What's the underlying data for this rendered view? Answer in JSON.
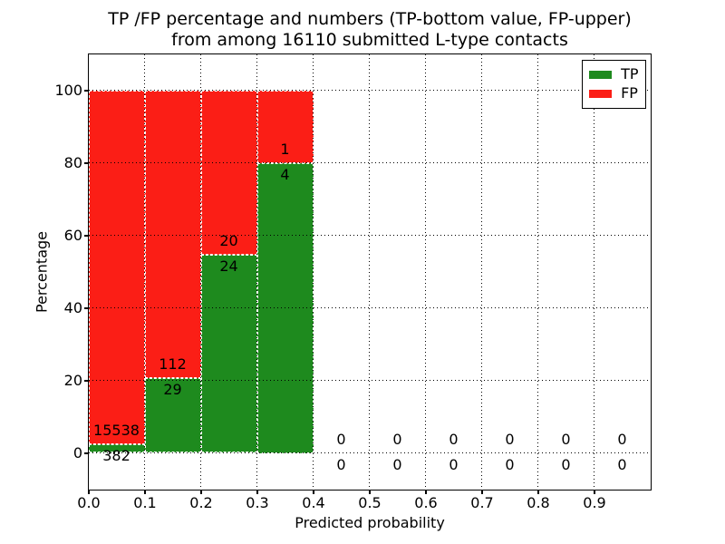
{
  "chart_data": {
    "type": "bar",
    "stacked": true,
    "title_line1": "TP /FP percentage and numbers (TP-bottom value, FP-upper)",
    "title_line2": "from among 16110 submitted L-type contacts",
    "total_submitted": 16110,
    "xlabel": "Predicted probability",
    "ylabel": "Percentage",
    "xlim": [
      0.0,
      1.0
    ],
    "ylim": [
      -10,
      110
    ],
    "grid": true,
    "x_tick_labels": [
      "0.0",
      "0.1",
      "0.2",
      "0.3",
      "0.4",
      "0.5",
      "0.6",
      "0.7",
      "0.8",
      "0.9"
    ],
    "y_tick_values": [
      0,
      20,
      40,
      60,
      80,
      100
    ],
    "bin_width": 0.1,
    "bins": [
      {
        "x0": 0.0,
        "x1": 0.1,
        "tp": 382,
        "fp": 15538
      },
      {
        "x0": 0.1,
        "x1": 0.2,
        "tp": 29,
        "fp": 112
      },
      {
        "x0": 0.2,
        "x1": 0.3,
        "tp": 24,
        "fp": 20
      },
      {
        "x0": 0.3,
        "x1": 0.4,
        "tp": 4,
        "fp": 1
      },
      {
        "x0": 0.4,
        "x1": 0.5,
        "tp": 0,
        "fp": 0
      },
      {
        "x0": 0.5,
        "x1": 0.6,
        "tp": 0,
        "fp": 0
      },
      {
        "x0": 0.6,
        "x1": 0.7,
        "tp": 0,
        "fp": 0
      },
      {
        "x0": 0.7,
        "x1": 0.8,
        "tp": 0,
        "fp": 0
      },
      {
        "x0": 0.8,
        "x1": 0.9,
        "tp": 0,
        "fp": 0
      },
      {
        "x0": 0.9,
        "x1": 1.0,
        "tp": 0,
        "fp": 0
      }
    ],
    "series": [
      {
        "name": "TP",
        "color": "#1e8a1e",
        "position": "bottom"
      },
      {
        "name": "FP",
        "color": "#fb1e16",
        "position": "top"
      }
    ],
    "legend": {
      "position": "upper right"
    },
    "colors": {
      "tp_green": "#1e8a1e",
      "fp_red": "#fb1e16",
      "grid": "#000000",
      "frame": "#000000",
      "background": "#ffffff"
    }
  }
}
